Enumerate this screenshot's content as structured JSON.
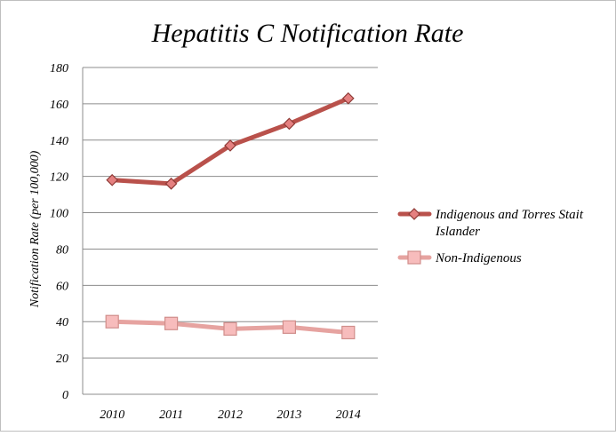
{
  "chart_data": {
    "type": "line",
    "title": "Hepatitis C Notification Rate",
    "xlabel": "",
    "ylabel": "Notification Rate (per 100,000)",
    "categories": [
      "2010",
      "2011",
      "2012",
      "2013",
      "2014"
    ],
    "ylim": [
      0,
      180
    ],
    "yticks": [
      0,
      20,
      40,
      60,
      80,
      100,
      120,
      140,
      160,
      180
    ],
    "grid": true,
    "legend_position": "right",
    "series": [
      {
        "name": "Indigenous and Torres Stait Islander",
        "legend_lines": [
          "Indigenous and Torres Stait",
          "Islander"
        ],
        "values": [
          118,
          116,
          137,
          149,
          163
        ],
        "color": "#b9514b",
        "marker": "diamond"
      },
      {
        "name": "Non-Indigenous",
        "legend_lines": [
          "Non-Indigenous"
        ],
        "values": [
          40,
          39,
          36,
          37,
          34
        ],
        "color": "#e6a3a0",
        "marker": "square"
      }
    ]
  }
}
